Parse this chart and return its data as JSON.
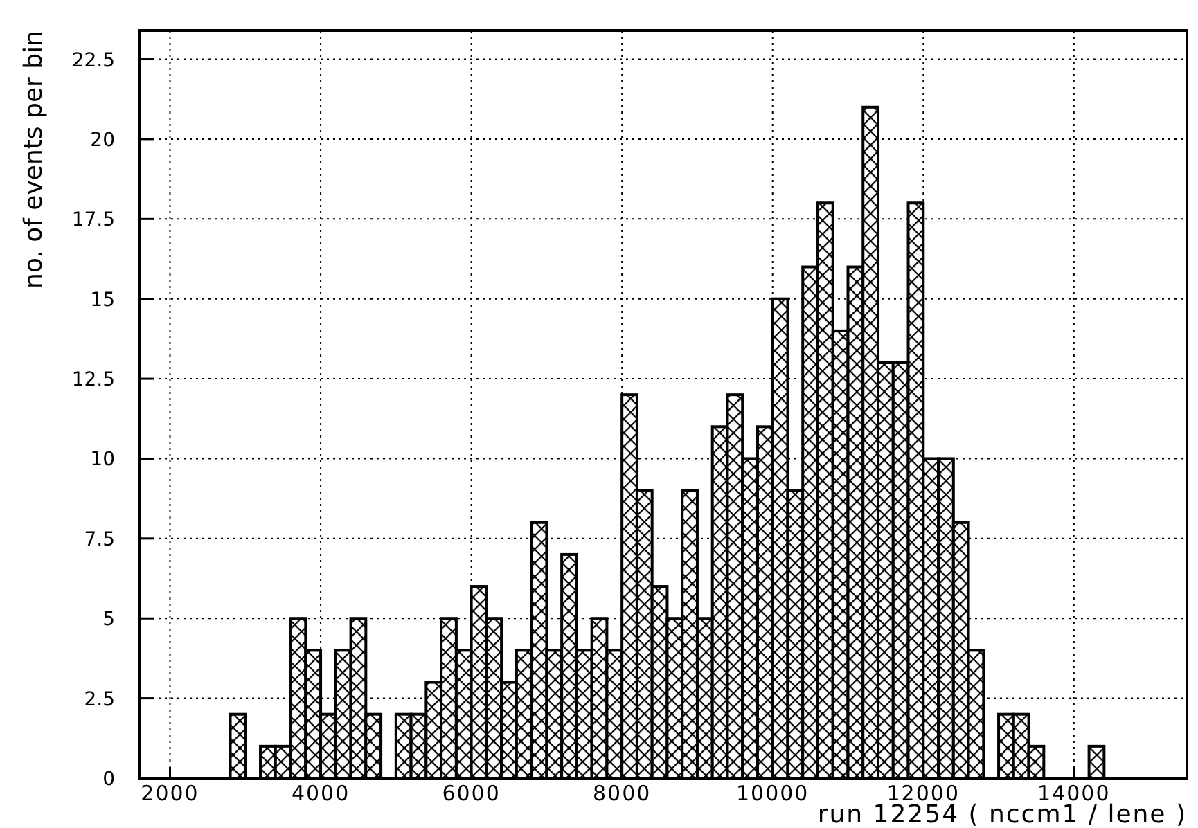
{
  "chart_data": {
    "type": "histogram",
    "xlabel": "run 12254 ( nccm1 / lene )",
    "ylabel": "no. of events per bin",
    "bins": [
      2800,
      3000,
      3200,
      3400,
      3600,
      3800,
      4000,
      4200,
      4400,
      4600,
      4800,
      5000,
      5200,
      5400,
      5600,
      5800,
      6000,
      6200,
      6400,
      6600,
      6800,
      7000,
      7200,
      7400,
      7600,
      7800,
      8000,
      8200,
      8400,
      8600,
      8800,
      9000,
      9200,
      9400,
      9600,
      9800,
      10000,
      10200,
      10400,
      10600,
      10800,
      11000,
      11200,
      11400,
      11600,
      11800,
      12000,
      12200,
      12400,
      12600,
      12800,
      13000,
      13200,
      13400,
      13600,
      13800,
      14000,
      14200,
      14400
    ],
    "values": [
      2,
      0,
      1,
      1,
      5,
      4,
      2,
      4,
      5,
      2,
      0,
      2,
      2,
      3,
      5,
      4,
      6,
      5,
      3,
      4,
      8,
      4,
      7,
      4,
      5,
      4,
      12,
      9,
      6,
      5,
      9,
      5,
      11,
      12,
      10,
      11,
      15,
      9,
      16,
      18,
      14,
      16,
      21,
      13,
      13,
      18,
      10,
      10,
      8,
      4,
      0,
      2,
      2,
      1,
      0,
      0,
      0,
      1
    ],
    "color": "#000000",
    "xlim": [
      1600,
      15500
    ],
    "xticks": [
      2000,
      4000,
      6000,
      8000,
      10000,
      12000,
      14000
    ],
    "ylim": [
      0,
      23.4
    ],
    "yticks": [
      0,
      2.5,
      5,
      7.5,
      10,
      12.5,
      15,
      17.5,
      20,
      22.5
    ],
    "grid": true
  }
}
